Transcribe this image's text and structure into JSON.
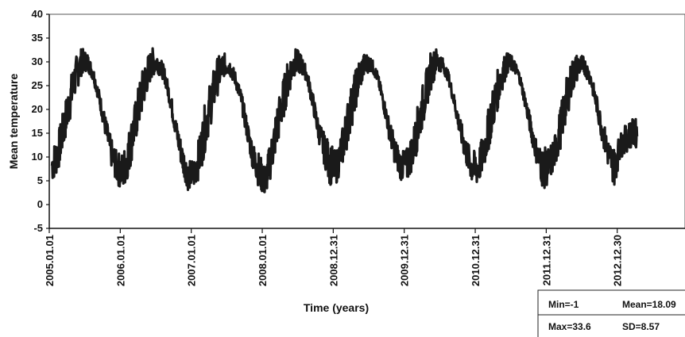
{
  "chart_data": {
    "type": "line",
    "title": "",
    "xlabel": "Time (years)",
    "ylabel": "Mean temperature",
    "ylim": [
      -5,
      40
    ],
    "xlim": [
      "2005.01.01",
      "2013.03.31"
    ],
    "yticks": [
      -5,
      0,
      5,
      10,
      15,
      20,
      25,
      30,
      35,
      40
    ],
    "xticks": [
      "2005.01.01",
      "2006.01.01",
      "2007.01.01",
      "2008.01.01",
      "2008.12.31",
      "2009.12.31",
      "2010.12.31",
      "2011.12.31",
      "2012.12.30"
    ],
    "grid": false,
    "legend": "none",
    "line_color": "#1a1a1a",
    "series": [
      {
        "sampling": "monthly, approximate daily envelope (low, high)",
        "x": [
          "2005-01",
          "2005-02",
          "2005-03",
          "2005-04",
          "2005-05",
          "2005-06",
          "2005-07",
          "2005-08",
          "2005-09",
          "2005-10",
          "2005-11",
          "2005-12",
          "2006-01",
          "2006-02",
          "2006-03",
          "2006-04",
          "2006-05",
          "2006-06",
          "2006-07",
          "2006-08",
          "2006-09",
          "2006-10",
          "2006-11",
          "2006-12",
          "2007-01",
          "2007-02",
          "2007-03",
          "2007-04",
          "2007-05",
          "2007-06",
          "2007-07",
          "2007-08",
          "2007-09",
          "2007-10",
          "2007-11",
          "2007-12",
          "2008-01",
          "2008-02",
          "2008-03",
          "2008-04",
          "2008-05",
          "2008-06",
          "2008-07",
          "2008-08",
          "2008-09",
          "2008-10",
          "2008-11",
          "2008-12",
          "2009-01",
          "2009-02",
          "2009-03",
          "2009-04",
          "2009-05",
          "2009-06",
          "2009-07",
          "2009-08",
          "2009-09",
          "2009-10",
          "2009-11",
          "2009-12",
          "2010-01",
          "2010-02",
          "2010-03",
          "2010-04",
          "2010-05",
          "2010-06",
          "2010-07",
          "2010-08",
          "2010-09",
          "2010-10",
          "2010-11",
          "2010-12",
          "2011-01",
          "2011-02",
          "2011-03",
          "2011-04",
          "2011-05",
          "2011-06",
          "2011-07",
          "2011-08",
          "2011-09",
          "2011-10",
          "2011-11",
          "2011-12",
          "2012-01",
          "2012-02",
          "2012-03",
          "2012-04",
          "2012-05",
          "2012-06",
          "2012-07",
          "2012-08",
          "2012-09",
          "2012-10",
          "2012-11",
          "2012-12",
          "2013-01",
          "2013-02",
          "2013-03"
        ],
        "low": [
          2,
          4,
          9,
          14,
          20,
          25,
          27,
          25,
          20,
          13,
          6,
          2,
          0,
          3,
          9,
          14,
          20,
          25,
          26,
          25,
          19,
          12,
          5,
          1,
          1,
          3,
          8,
          14,
          20,
          25,
          26,
          24,
          19,
          12,
          5,
          1,
          -1,
          3,
          8,
          14,
          20,
          25,
          26,
          25,
          19,
          12,
          6,
          1,
          2,
          5,
          9,
          15,
          21,
          26,
          27,
          25,
          19,
          12,
          6,
          3,
          2,
          5,
          9,
          15,
          21,
          26,
          27,
          25,
          19,
          12,
          6,
          2,
          1,
          5,
          9,
          15,
          21,
          26,
          27,
          25,
          19,
          12,
          6,
          0,
          2,
          5,
          9,
          15,
          21,
          25,
          26,
          24,
          18,
          11,
          5,
          1,
          8,
          9,
          10
        ],
        "high": [
          12,
          15,
          20,
          26,
          31,
          33,
          32,
          29,
          24,
          19,
          14,
          11,
          11,
          16,
          21,
          27,
          31,
          33,
          32,
          29,
          24,
          18,
          13,
          9,
          10,
          15,
          22,
          27,
          31,
          32,
          31,
          28,
          24,
          18,
          13,
          11,
          8,
          14,
          21,
          26,
          31,
          33,
          32,
          29,
          24,
          18,
          15,
          13,
          11,
          16,
          22,
          27,
          31,
          32,
          31,
          28,
          23,
          18,
          14,
          11,
          12,
          16,
          22,
          27,
          32,
          33,
          31,
          28,
          23,
          18,
          14,
          11,
          12,
          15,
          22,
          27,
          31,
          32,
          31,
          28,
          23,
          18,
          13,
          12,
          12,
          15,
          21,
          27,
          31,
          32,
          31,
          28,
          23,
          18,
          14,
          12,
          15,
          17,
          18
        ]
      }
    ],
    "stats": {
      "min": "Min=-1",
      "max": "Max=33.6",
      "mean": "Mean=18.09",
      "sd": "SD=8.57"
    }
  }
}
